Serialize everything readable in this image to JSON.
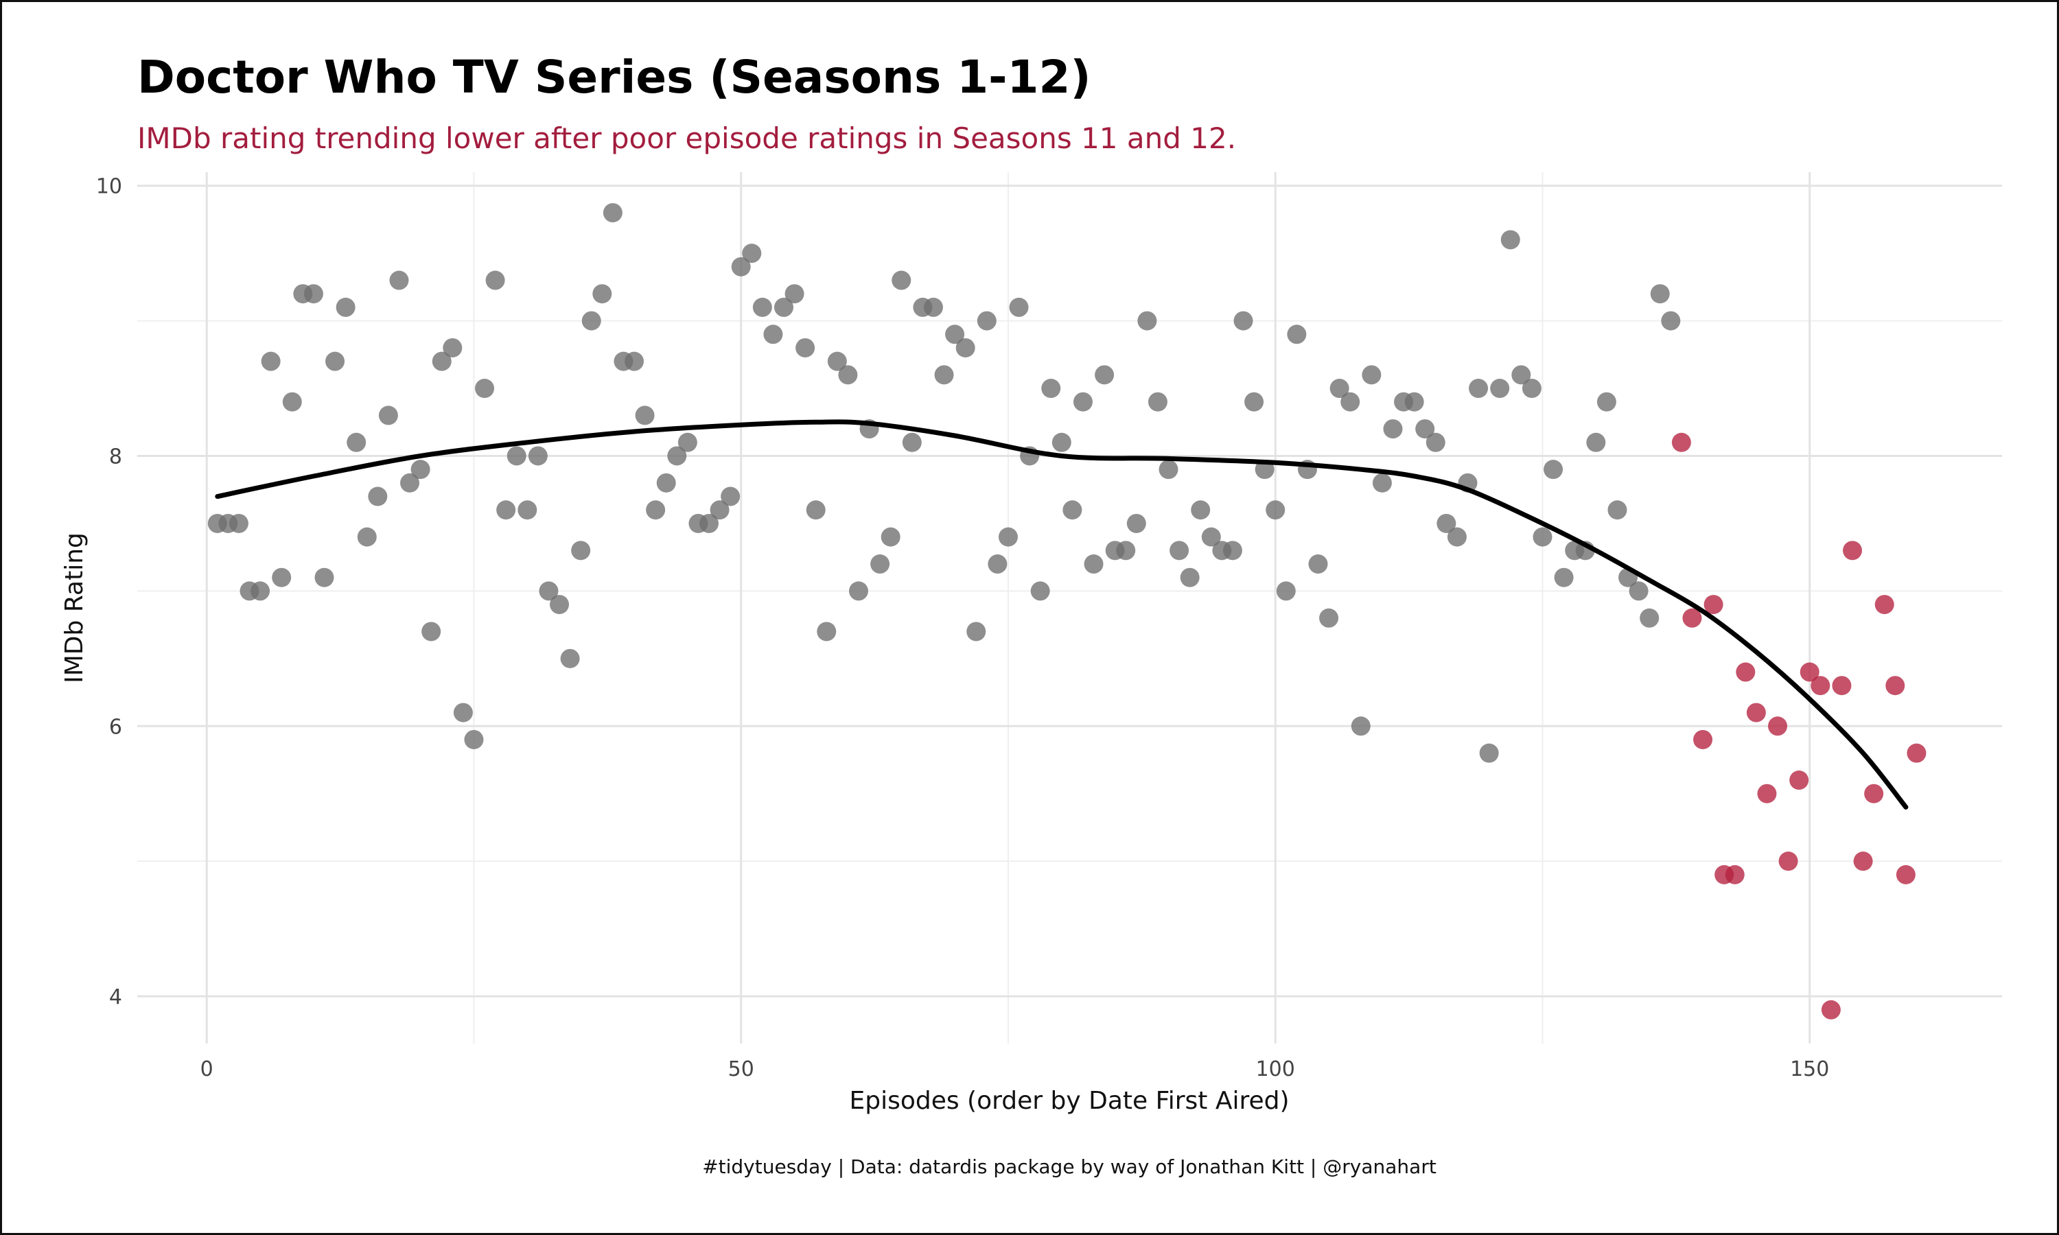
{
  "chart_data": {
    "type": "scatter",
    "title": "Doctor Who TV Series (Seasons 1-12)",
    "subtitle": "IMDb rating trending lower after poor episode ratings in Seasons 11 and 12.",
    "xlabel": "Episodes (order by Date First Aired)",
    "ylabel": "IMDb Rating",
    "caption": "#tidytuesday | Data: datardis package by way of Jonathan Kitt | @ryanahart",
    "xlim": [
      -6.5,
      168
    ],
    "ylim": [
      3.65,
      10.1
    ],
    "x_ticks": [
      0,
      50,
      100,
      150
    ],
    "x_tick_labels": [
      "0",
      "50",
      "100",
      "150"
    ],
    "y_ticks": [
      4,
      6,
      8,
      10
    ],
    "y_tick_labels": [
      "4",
      "6",
      "8",
      "10"
    ],
    "x_minor": [
      25,
      75,
      125
    ],
    "y_minor": [
      5,
      7,
      9
    ],
    "grid": true,
    "legend": "none",
    "colors": {
      "seasons_1_10": "#6e6e6e",
      "seasons_11_12": "#b5213f",
      "trend": "#000000"
    },
    "series": [
      {
        "color": "#6e6e6e",
        "x": [
          1,
          2,
          3,
          4,
          5,
          6,
          7,
          8,
          9,
          10,
          11,
          12,
          13,
          14,
          15,
          16,
          17,
          18,
          19,
          20,
          21,
          22,
          23,
          24,
          25,
          26,
          27,
          28,
          29,
          30,
          31,
          32,
          33,
          34,
          35,
          36,
          37,
          38,
          39,
          40,
          41,
          42,
          43,
          44,
          45,
          46,
          47,
          48,
          49,
          50,
          51,
          52,
          53,
          54,
          55,
          56,
          57,
          58,
          59,
          60,
          61,
          62,
          63,
          64,
          65,
          66,
          67,
          68,
          69,
          70,
          71,
          72,
          73,
          74,
          75,
          76,
          77,
          78,
          79,
          80,
          81,
          82,
          83,
          84,
          85,
          86,
          87,
          88,
          89,
          90,
          91,
          92,
          93,
          94,
          95,
          96,
          97,
          98,
          99,
          100,
          101,
          102,
          103,
          104,
          105,
          106,
          107,
          108,
          109,
          110,
          111,
          112,
          113,
          114,
          115,
          116,
          117,
          118,
          119,
          120,
          121,
          122,
          123,
          124,
          125,
          126,
          127,
          128,
          129,
          130,
          131,
          132,
          133,
          134,
          135,
          136,
          137
        ],
        "y": [
          7.5,
          7.5,
          7.5,
          7.0,
          7.0,
          8.7,
          7.1,
          8.4,
          9.2,
          9.2,
          7.1,
          8.7,
          9.1,
          8.1,
          7.4,
          7.7,
          8.3,
          9.3,
          7.8,
          7.9,
          6.7,
          8.7,
          8.8,
          6.1,
          5.9,
          8.5,
          9.3,
          7.6,
          8.0,
          7.6,
          8.0,
          7.0,
          6.9,
          6.5,
          7.3,
          9.0,
          9.2,
          9.8,
          8.7,
          8.7,
          8.3,
          7.6,
          7.8,
          8.0,
          8.1,
          7.5,
          7.5,
          7.6,
          7.7,
          9.4,
          9.5,
          9.1,
          8.9,
          9.1,
          9.2,
          8.8,
          7.6,
          6.7,
          8.7,
          8.6,
          7.0,
          8.2,
          7.2,
          7.4,
          9.3,
          8.1,
          9.1,
          9.1,
          8.6,
          8.9,
          8.8,
          6.7,
          9.0,
          7.2,
          7.4,
          9.1,
          8.0,
          7.0,
          8.5,
          8.1,
          7.6,
          8.4,
          7.2,
          8.6,
          7.3,
          7.3,
          7.5,
          9.0,
          8.4,
          7.9,
          7.3,
          7.1,
          7.6,
          7.4,
          7.3,
          7.3,
          9.0,
          8.4,
          7.9,
          7.6,
          7.0,
          8.9,
          7.9,
          7.2,
          6.8,
          8.5,
          8.4,
          6.0,
          8.6,
          7.8,
          8.2,
          8.4,
          8.4,
          8.2,
          8.1,
          7.5,
          7.4,
          7.8,
          8.5,
          5.8,
          8.5,
          9.6,
          8.6,
          8.5,
          7.4,
          7.9,
          7.1,
          7.3,
          7.3,
          8.1,
          8.4,
          7.6,
          7.1,
          7.0,
          6.8,
          9.2,
          9.0
        ]
      },
      {
        "color": "#b5213f",
        "x": [
          138,
          139,
          140,
          141,
          142,
          143,
          144,
          145,
          146,
          147,
          148,
          149,
          150,
          151,
          152,
          153,
          154,
          155,
          156,
          157,
          158,
          159,
          160
        ],
        "y": [
          8.1,
          6.8,
          5.9,
          6.9,
          4.9,
          4.9,
          6.4,
          6.1,
          5.5,
          6.0,
          5.0,
          5.6,
          6.4,
          6.3,
          3.9,
          6.3,
          7.3,
          5.0,
          5.5,
          6.9,
          6.3,
          4.9,
          5.8
        ]
      }
    ],
    "trend_line": {
      "x": [
        1,
        10,
        20,
        30,
        40,
        50,
        57,
        62,
        70,
        80,
        90,
        100,
        108,
        113,
        118,
        125,
        130,
        135,
        140,
        145,
        150,
        155,
        159
      ],
      "y": [
        7.7,
        7.85,
        8.0,
        8.1,
        8.18,
        8.23,
        8.25,
        8.24,
        8.15,
        8.0,
        7.98,
        7.95,
        7.9,
        7.85,
        7.75,
        7.5,
        7.3,
        7.08,
        6.85,
        6.55,
        6.2,
        5.8,
        5.4
      ]
    }
  }
}
